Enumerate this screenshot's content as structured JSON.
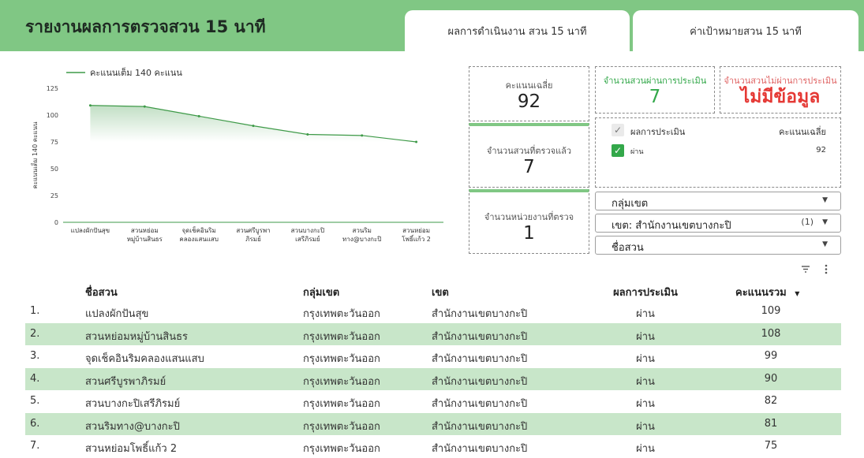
{
  "header": {
    "title": "รายงานผลการตรวจสวน 15 นาที",
    "tabs": [
      "ผลการดำเนินงาน สวน 15 นาที",
      "ค่าเป้าหมายสวน 15 นาที"
    ]
  },
  "colors": {
    "accent": "#80c784",
    "row_alt": "#c8e6c9",
    "line": "#3e9a48",
    "pass": "#33a84a",
    "fail": "#e53935"
  },
  "chart_data": {
    "type": "area",
    "legend": "คะแนนเต็ม 140 คะแนน",
    "legend_position": "top-left",
    "ylabel": "คะแนนเต็ม 140 คะแนน",
    "ylim": [
      0,
      125
    ],
    "yticks": [
      0,
      25,
      50,
      75,
      100,
      125
    ],
    "grid": false,
    "categories": [
      [
        "แปลงผักปันสุข"
      ],
      [
        "สวนหย่อม",
        "หมู่บ้านสินธร"
      ],
      [
        "จุดเช็คอินริม",
        "คลองแสนแสบ"
      ],
      [
        "สวนศรีบูรพา",
        "ภิรมย์"
      ],
      [
        "สวนบางกะปิ",
        "เสรีภิรมย์"
      ],
      [
        "สวนริม",
        "ทาง@บางกะปิ"
      ],
      [
        "สวนหย่อม",
        "โพธิ์แก้ว 2"
      ]
    ],
    "series": [
      {
        "name": "คะแนนเต็ม 140 คะแนน",
        "values": [
          109,
          108,
          99,
          90,
          82,
          81,
          75
        ]
      }
    ]
  },
  "scorecards": {
    "avg": {
      "label": "คะแนนเฉลี่ย",
      "value": "92"
    },
    "passed": {
      "label": "จำนวนสวนผ่านการประเมิน",
      "value": "7"
    },
    "failed": {
      "label": "จำนวนสวนไม่ผ่านการประเมิน",
      "value": "ไม่มีข้อมูล"
    },
    "checked": {
      "label": "จำนวนสวนที่ตรวจแล้ว",
      "value": "7"
    },
    "units": {
      "label": "จำนวนหน่วยงานที่ตรวจ",
      "value": "1"
    }
  },
  "result_filter": {
    "header_label": "ผลการประเมิน",
    "header_score": "คะแนนเฉลี่ย",
    "items": [
      {
        "label": "ผ่าน",
        "score": "92"
      }
    ]
  },
  "filters": {
    "group": {
      "label": "กลุ่มเขต"
    },
    "district": {
      "label": "เขต: สำนักงานเขตบางกะปิ",
      "count": "(1)"
    },
    "park": {
      "label": "ชื่อสวน"
    }
  },
  "table": {
    "columns": [
      "ชื่อสวน",
      "กลุ่มเขต",
      "เขต",
      "ผลการประเมิน",
      "คะแนนรวม"
    ],
    "sort_indicator": "▼",
    "rows": [
      {
        "idx": "1.",
        "name": "แปลงผักปันสุข",
        "group": "กรุงเทพตะวันออก",
        "district": "สำนักงานเขตบางกะปิ",
        "result": "ผ่าน",
        "score": "109"
      },
      {
        "idx": "2.",
        "name": "สวนหย่อมหมู่บ้านสินธร",
        "group": "กรุงเทพตะวันออก",
        "district": "สำนักงานเขตบางกะปิ",
        "result": "ผ่าน",
        "score": "108"
      },
      {
        "idx": "3.",
        "name": "จุดเช็คอินริมคลองแสนแสบ",
        "group": "กรุงเทพตะวันออก",
        "district": "สำนักงานเขตบางกะปิ",
        "result": "ผ่าน",
        "score": "99"
      },
      {
        "idx": "4.",
        "name": "สวนศรีบูรพาภิรมย์",
        "group": "กรุงเทพตะวันออก",
        "district": "สำนักงานเขตบางกะปิ",
        "result": "ผ่าน",
        "score": "90"
      },
      {
        "idx": "5.",
        "name": "สวนบางกะปิเสรีภิรมย์",
        "group": "กรุงเทพตะวันออก",
        "district": "สำนักงานเขตบางกะปิ",
        "result": "ผ่าน",
        "score": "82"
      },
      {
        "idx": "6.",
        "name": "สวนริมทาง@บางกะปิ",
        "group": "กรุงเทพตะวันออก",
        "district": "สำนักงานเขตบางกะปิ",
        "result": "ผ่าน",
        "score": "81"
      },
      {
        "idx": "7.",
        "name": "สวนหย่อมโพธิ์แก้ว 2",
        "group": "กรุงเทพตะวันออก",
        "district": "สำนักงานเขตบางกะปิ",
        "result": "ผ่าน",
        "score": "75"
      }
    ]
  }
}
